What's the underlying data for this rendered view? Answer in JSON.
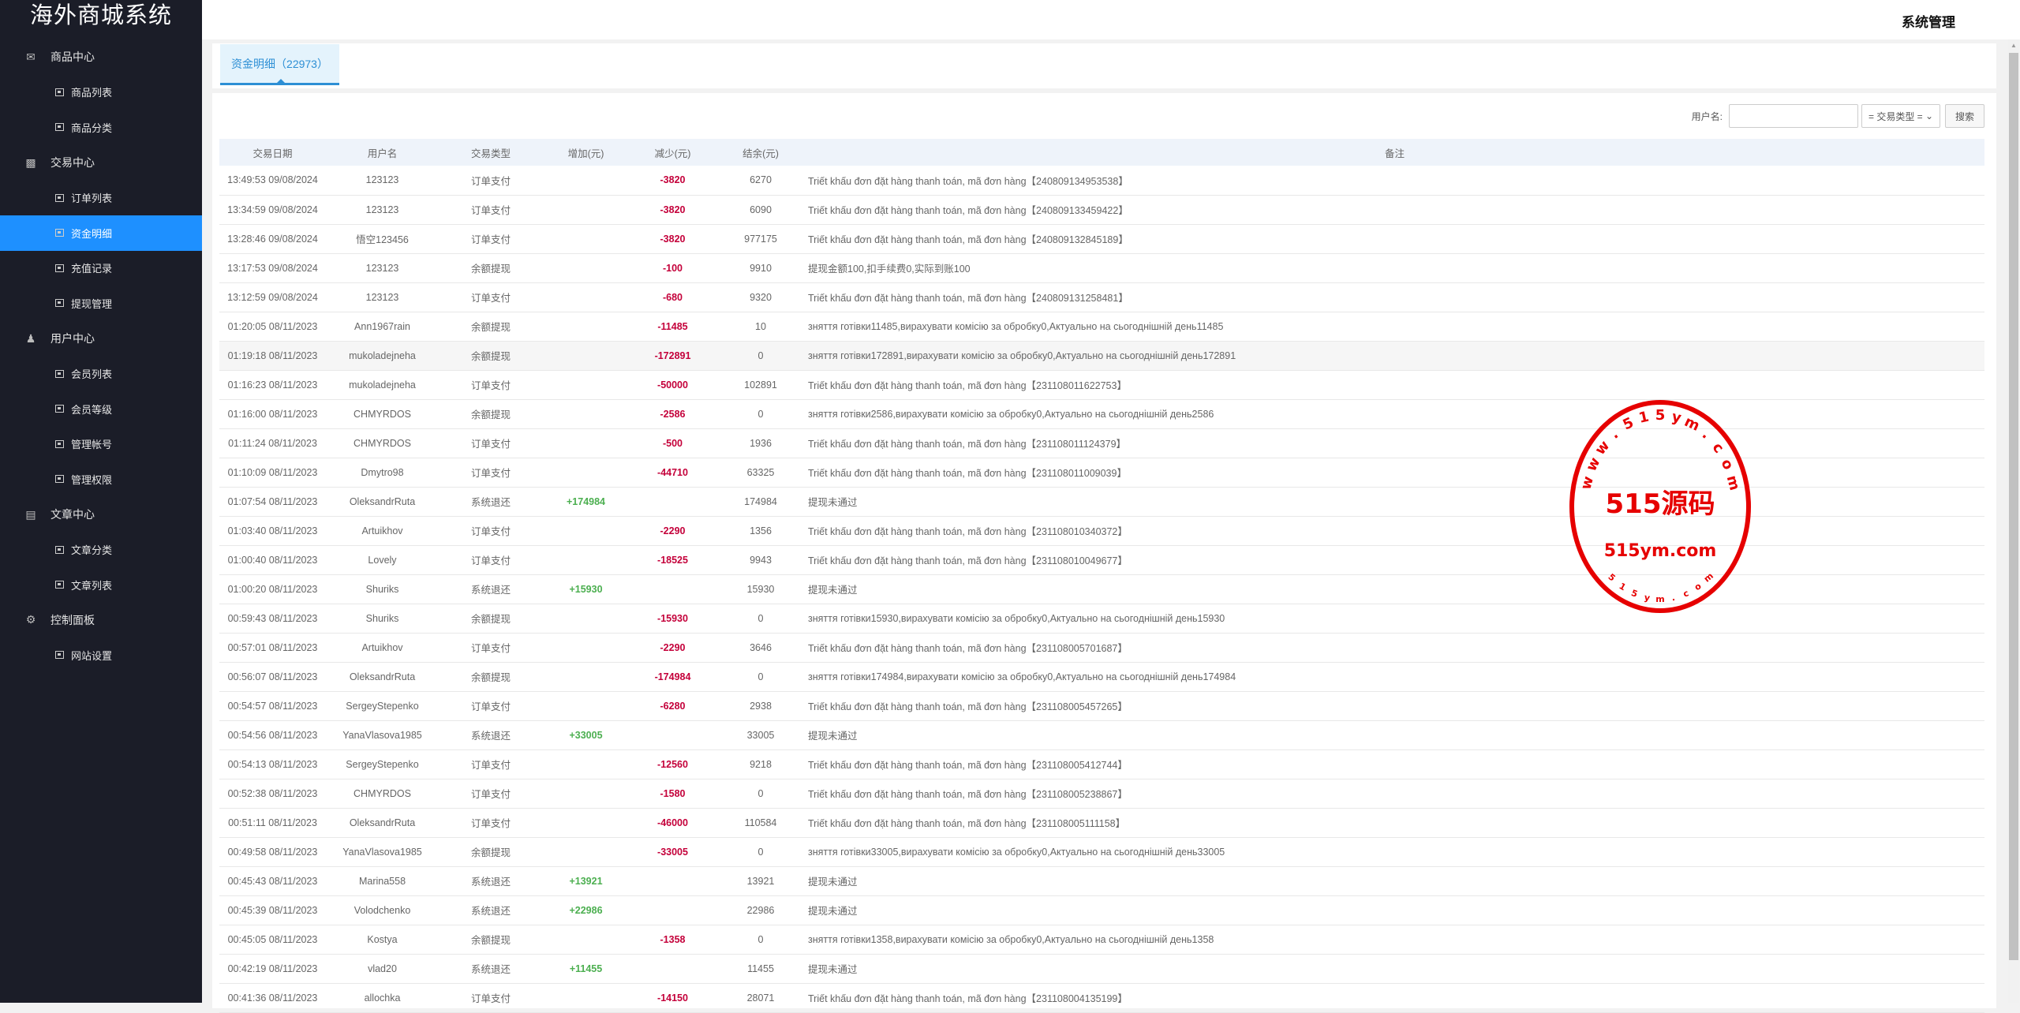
{
  "sidebar": {
    "title": "海外商城系统",
    "groups": [
      {
        "label": "商品中心",
        "icon": "shop-icon",
        "items": [
          {
            "label": "商品列表"
          },
          {
            "label": "商品分类"
          }
        ]
      },
      {
        "label": "交易中心",
        "icon": "bar-chart-icon",
        "items": [
          {
            "label": "订单列表"
          },
          {
            "label": "资金明细",
            "active": true
          },
          {
            "label": "充值记录"
          },
          {
            "label": "提现管理"
          }
        ]
      },
      {
        "label": "用户中心",
        "icon": "user-icon",
        "items": [
          {
            "label": "会员列表"
          },
          {
            "label": "会员等级"
          },
          {
            "label": "管理帐号"
          },
          {
            "label": "管理权限"
          }
        ]
      },
      {
        "label": "文章中心",
        "icon": "document-icon",
        "items": [
          {
            "label": "文章分类"
          },
          {
            "label": "文章列表"
          }
        ]
      },
      {
        "label": "控制面板",
        "icon": "gear-icon",
        "items": [
          {
            "label": "网站设置"
          }
        ]
      }
    ]
  },
  "header": {
    "title": "系统管理"
  },
  "tab": {
    "label": "资金明细（22973）"
  },
  "search": {
    "username_label": "用户名:",
    "username_value": "",
    "type_select": "= 交易类型 =",
    "button": "搜索"
  },
  "colors": {
    "increase": "#4caf50",
    "decrease": "#c4003a",
    "active": "#1e90ff"
  },
  "table": {
    "columns": [
      "交易日期",
      "用户名",
      "交易类型",
      "增加(元)",
      "减少(元)",
      "结余(元)",
      "备注"
    ],
    "rows": [
      [
        "13:49:53 09/08/2024",
        "123123",
        "订单支付",
        "",
        "-3820",
        "6270",
        "Triết khấu đơn đặt hàng thanh toán, mã đơn hàng【240809134953538】"
      ],
      [
        "13:34:59 09/08/2024",
        "123123",
        "订单支付",
        "",
        "-3820",
        "6090",
        "Triết khấu đơn đặt hàng thanh toán, mã đơn hàng【240809133459422】"
      ],
      [
        "13:28:46 09/08/2024",
        "悟空123456",
        "订单支付",
        "",
        "-3820",
        "977175",
        "Triết khấu đơn đặt hàng thanh toán, mã đơn hàng【240809132845189】"
      ],
      [
        "13:17:53 09/08/2024",
        "123123",
        "余额提现",
        "",
        "-100",
        "9910",
        "提现金额100,扣手续费0,实际到账100"
      ],
      [
        "13:12:59 09/08/2024",
        "123123",
        "订单支付",
        "",
        "-680",
        "9320",
        "Triết khấu đơn đặt hàng thanh toán, mã đơn hàng【240809131258481】"
      ],
      [
        "01:20:05 08/11/2023",
        "Ann1967rain",
        "余额提现",
        "",
        "-11485",
        "10",
        "зняття готівки11485,вирахувати комісію за обробку0,Актуально на сьогоднішній день11485"
      ],
      [
        "01:19:18 08/11/2023",
        "mukoladejneha",
        "余额提现",
        "",
        "-172891",
        "0",
        "зняття готівки172891,вирахувати комісію за обробку0,Актуально на сьогоднішній день172891"
      ],
      [
        "01:16:23 08/11/2023",
        "mukoladejneha",
        "订单支付",
        "",
        "-50000",
        "102891",
        "Triết khấu đơn đặt hàng thanh toán, mã đơn hàng【231108011622753】"
      ],
      [
        "01:16:00 08/11/2023",
        "CHMYRDOS",
        "余额提现",
        "",
        "-2586",
        "0",
        "зняття готівки2586,вирахувати комісію за обробку0,Актуально на сьогоднішній день2586"
      ],
      [
        "01:11:24 08/11/2023",
        "CHMYRDOS",
        "订单支付",
        "",
        "-500",
        "1936",
        "Triết khấu đơn đặt hàng thanh toán, mã đơn hàng【231108011124379】"
      ],
      [
        "01:10:09 08/11/2023",
        "Dmytro98",
        "订单支付",
        "",
        "-44710",
        "63325",
        "Triết khấu đơn đặt hàng thanh toán, mã đơn hàng【231108011009039】"
      ],
      [
        "01:07:54 08/11/2023",
        "OleksandrRuta",
        "系统退还",
        "+174984",
        "",
        "174984",
        "提现未通过"
      ],
      [
        "01:03:40 08/11/2023",
        "Artuikhov",
        "订单支付",
        "",
        "-2290",
        "1356",
        "Triết khấu đơn đặt hàng thanh toán, mã đơn hàng【231108010340372】"
      ],
      [
        "01:00:40 08/11/2023",
        "Lovely",
        "订单支付",
        "",
        "-18525",
        "9943",
        "Triết khấu đơn đặt hàng thanh toán, mã đơn hàng【231108010049677】"
      ],
      [
        "01:00:20 08/11/2023",
        "Shuriks",
        "系统退还",
        "+15930",
        "",
        "15930",
        "提现未通过"
      ],
      [
        "00:59:43 08/11/2023",
        "Shuriks",
        "余额提现",
        "",
        "-15930",
        "0",
        "зняття готівки15930,вирахувати комісію за обробку0,Актуально на сьогоднішній день15930"
      ],
      [
        "00:57:01 08/11/2023",
        "Artuikhov",
        "订单支付",
        "",
        "-2290",
        "3646",
        "Triết khấu đơn đặt hàng thanh toán, mã đơn hàng【231108005701687】"
      ],
      [
        "00:56:07 08/11/2023",
        "OleksandrRuta",
        "余额提现",
        "",
        "-174984",
        "0",
        "зняття готівки174984,вирахувати комісію за обробку0,Актуально на сьогоднішній день174984"
      ],
      [
        "00:54:57 08/11/2023",
        "SergeyStepenko",
        "订单支付",
        "",
        "-6280",
        "2938",
        "Triết khấu đơn đặt hàng thanh toán, mã đơn hàng【231108005457265】"
      ],
      [
        "00:54:56 08/11/2023",
        "YanaVlasova1985",
        "系统退还",
        "+33005",
        "",
        "33005",
        "提现未通过"
      ],
      [
        "00:54:13 08/11/2023",
        "SergeyStepenko",
        "订单支付",
        "",
        "-12560",
        "9218",
        "Triết khấu đơn đặt hàng thanh toán, mã đơn hàng【231108005412744】"
      ],
      [
        "00:52:38 08/11/2023",
        "CHMYRDOS",
        "订单支付",
        "",
        "-1580",
        "0",
        "Triết khấu đơn đặt hàng thanh toán, mã đơn hàng【231108005238867】"
      ],
      [
        "00:51:11 08/11/2023",
        "OleksandrRuta",
        "订单支付",
        "",
        "-46000",
        "110584",
        "Triết khấu đơn đặt hàng thanh toán, mã đơn hàng【231108005111158】"
      ],
      [
        "00:49:58 08/11/2023",
        "YanaVlasova1985",
        "余额提现",
        "",
        "-33005",
        "0",
        "зняття готівки33005,вирахувати комісію за обробку0,Актуально на сьогоднішній день33005"
      ],
      [
        "00:45:43 08/11/2023",
        "Marina558",
        "系统退还",
        "+13921",
        "",
        "13921",
        "提现未通过"
      ],
      [
        "00:45:39 08/11/2023",
        "Volodchenko",
        "系统退还",
        "+22986",
        "",
        "22986",
        "提现未通过"
      ],
      [
        "00:45:05 08/11/2023",
        "Kostya",
        "余额提现",
        "",
        "-1358",
        "0",
        "зняття готівки1358,вирахувати комісію за обробку0,Актуально на сьогоднішній день1358"
      ],
      [
        "00:42:19 08/11/2023",
        "vlad20",
        "系统退还",
        "+11455",
        "",
        "11455",
        "提现未通过"
      ],
      [
        "00:41:36 08/11/2023",
        "allochka",
        "订单支付",
        "",
        "-14150",
        "28071",
        "Triết khấu đơn đặt hàng thanh toán, mã đơn hàng【231108004135199】"
      ]
    ]
  },
  "watermark": {
    "center": "515源码",
    "url": "515ym.com",
    "arc_top": "www.515ym.com",
    "arc_bottom": "515ym.com",
    "color": "#e60000"
  }
}
